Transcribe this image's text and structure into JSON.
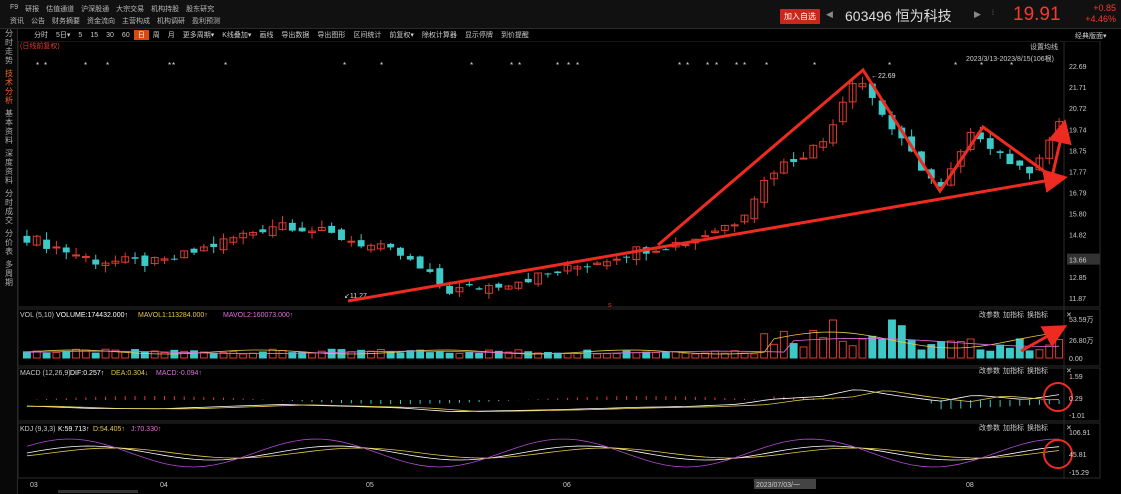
{
  "menu_row1": [
    "F9",
    "研报",
    "估值通道",
    "沪深股通",
    "大宗交易",
    "机构持股",
    "股东研究"
  ],
  "menu_row2": [
    "资讯",
    "公告",
    "财务摘要",
    "资金流向",
    "主营构成",
    "机构调研",
    "盈利预测"
  ],
  "add_watch": "加入自选",
  "stock": {
    "code": "603496",
    "name": "恒为科技",
    "price": "19.91",
    "change": "+0.85",
    "pct": "+4.46%"
  },
  "toolbar": [
    "分时",
    "5日▾",
    "5",
    "15",
    "30",
    "60",
    "日",
    "周",
    "月",
    "更多周期▾",
    "K线叠加▾",
    "画线",
    "导出数据",
    "导出图形",
    "区间统计",
    "前复权▾",
    "除权计算器",
    "显示停牌",
    "到价提醒"
  ],
  "toolbar_selected": 6,
  "classic": "经典版面▾",
  "sidebar": [
    {
      "t": "分时走势",
      "a": false
    },
    {
      "t": "技术分析",
      "a": true
    },
    {
      "t": "基本资料",
      "a": false
    },
    {
      "t": "深度资料",
      "a": false
    },
    {
      "t": "分时成交",
      "a": false
    },
    {
      "t": "分价表",
      "a": false
    },
    {
      "t": "多周期",
      "a": false
    }
  ],
  "main_panel": {
    "note": "(日线前复权)",
    "settings": "设置均线",
    "range": "2023/3/13-2023/8/15(106根)",
    "y_ticks": [
      "22.69",
      "21.71",
      "20.72",
      "19.74",
      "18.75",
      "17.77",
      "16.79",
      "15.80",
      "14.82",
      "13.66",
      "12.85",
      "11.87"
    ],
    "high_label": "22.69",
    "low_label": "11.27",
    "current_marker": "13.66"
  },
  "vol_panel": {
    "title": "VOL (5,10)",
    "v1": "VOLUME:174432.000↑",
    "v2": "MAVOL1:113284.000↑",
    "v3": "MAVOL2:160073.000↑",
    "btns": [
      "改参数",
      "加指标",
      "换指标"
    ],
    "y_ticks": [
      "53.59万",
      "26.80万",
      "0.00"
    ]
  },
  "macd_panel": {
    "title": "MACD (12,26,9)",
    "v1": "DIF:0.257↑",
    "v2": "DEA:0.304↓",
    "v3": "MACD:-0.094↑",
    "btns": [
      "改参数",
      "加指标",
      "换指标"
    ],
    "y_ticks": [
      "1.59",
      "0.29",
      "-1.01"
    ]
  },
  "kdj_panel": {
    "title": "KDJ (9,3,3)",
    "v1": "K:59.713↑",
    "v2": "D:54.405↑",
    "v3": "J:70.330↑",
    "btns": [
      "改参数",
      "加指标",
      "换指标"
    ],
    "y_ticks": [
      "106.91",
      "45.81",
      "-15.29"
    ]
  },
  "x_axis": [
    "03",
    "04",
    "05",
    "06",
    "2023/07/03/一",
    "08"
  ],
  "colors": {
    "up": "#e03a30",
    "down": "#3ec9c9",
    "annotation": "#ee2b20",
    "accent": "#d9480f"
  }
}
